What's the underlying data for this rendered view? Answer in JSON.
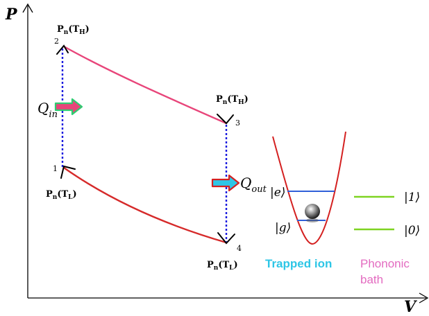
{
  "axes": {
    "y_label": "P",
    "x_label": "V"
  },
  "points": [
    {
      "id": "1",
      "label": "1"
    },
    {
      "id": "2",
      "label": "2"
    },
    {
      "id": "3",
      "label": "3"
    },
    {
      "id": "4",
      "label": "4"
    }
  ],
  "state_labels": {
    "p2": "Pn(TH)",
    "p3": "Pn(TH)",
    "p1": "Pn(TL)",
    "p4": "Pn(TL)"
  },
  "heat": {
    "q_in": {
      "main": "Q",
      "sub": "in"
    },
    "q_out": {
      "main": "Q",
      "sub": "out"
    }
  },
  "ion": {
    "excited": "|e⟩",
    "ground": "|g⟩",
    "caption": "Trapped ion"
  },
  "bath": {
    "upper": "|1⟩",
    "lower": "|0⟩",
    "caption_line1": "Phononic",
    "caption_line2": "bath"
  },
  "colors": {
    "hot_isotherm": "#e8457a",
    "cold_isotherm": "#d62a2a",
    "isochore": "#1a1adf",
    "level": "#2f5fd8",
    "bath_level": "#7ed321",
    "trap": "#d42020",
    "q_in_fill": "#e8457a",
    "q_in_border": "#2ecc71",
    "q_out_fill": "#2ec6e6",
    "q_out_border": "#d42020"
  }
}
